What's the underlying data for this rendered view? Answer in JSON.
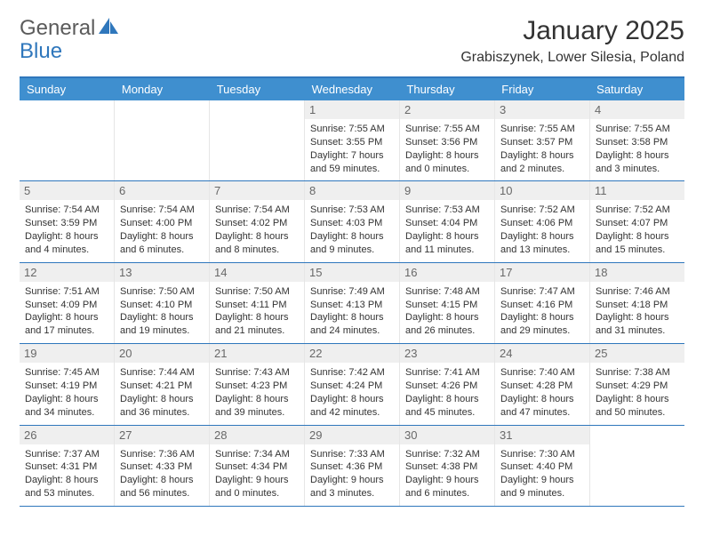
{
  "logo": {
    "word1": "General",
    "word2": "Blue"
  },
  "title": "January 2025",
  "location": "Grabiszynek, Lower Silesia, Poland",
  "colors": {
    "header_bar": "#3f8fcf",
    "border": "#2f77bc",
    "daynum_bg": "#efefef",
    "daynum_fg": "#686868",
    "text": "#333333"
  },
  "weekdays": [
    "Sunday",
    "Monday",
    "Tuesday",
    "Wednesday",
    "Thursday",
    "Friday",
    "Saturday"
  ],
  "weeks": [
    [
      {
        "n": "",
        "sr": "",
        "ss": "",
        "dl": ""
      },
      {
        "n": "",
        "sr": "",
        "ss": "",
        "dl": ""
      },
      {
        "n": "",
        "sr": "",
        "ss": "",
        "dl": ""
      },
      {
        "n": "1",
        "sr": "Sunrise: 7:55 AM",
        "ss": "Sunset: 3:55 PM",
        "dl": "Daylight: 7 hours and 59 minutes."
      },
      {
        "n": "2",
        "sr": "Sunrise: 7:55 AM",
        "ss": "Sunset: 3:56 PM",
        "dl": "Daylight: 8 hours and 0 minutes."
      },
      {
        "n": "3",
        "sr": "Sunrise: 7:55 AM",
        "ss": "Sunset: 3:57 PM",
        "dl": "Daylight: 8 hours and 2 minutes."
      },
      {
        "n": "4",
        "sr": "Sunrise: 7:55 AM",
        "ss": "Sunset: 3:58 PM",
        "dl": "Daylight: 8 hours and 3 minutes."
      }
    ],
    [
      {
        "n": "5",
        "sr": "Sunrise: 7:54 AM",
        "ss": "Sunset: 3:59 PM",
        "dl": "Daylight: 8 hours and 4 minutes."
      },
      {
        "n": "6",
        "sr": "Sunrise: 7:54 AM",
        "ss": "Sunset: 4:00 PM",
        "dl": "Daylight: 8 hours and 6 minutes."
      },
      {
        "n": "7",
        "sr": "Sunrise: 7:54 AM",
        "ss": "Sunset: 4:02 PM",
        "dl": "Daylight: 8 hours and 8 minutes."
      },
      {
        "n": "8",
        "sr": "Sunrise: 7:53 AM",
        "ss": "Sunset: 4:03 PM",
        "dl": "Daylight: 8 hours and 9 minutes."
      },
      {
        "n": "9",
        "sr": "Sunrise: 7:53 AM",
        "ss": "Sunset: 4:04 PM",
        "dl": "Daylight: 8 hours and 11 minutes."
      },
      {
        "n": "10",
        "sr": "Sunrise: 7:52 AM",
        "ss": "Sunset: 4:06 PM",
        "dl": "Daylight: 8 hours and 13 minutes."
      },
      {
        "n": "11",
        "sr": "Sunrise: 7:52 AM",
        "ss": "Sunset: 4:07 PM",
        "dl": "Daylight: 8 hours and 15 minutes."
      }
    ],
    [
      {
        "n": "12",
        "sr": "Sunrise: 7:51 AM",
        "ss": "Sunset: 4:09 PM",
        "dl": "Daylight: 8 hours and 17 minutes."
      },
      {
        "n": "13",
        "sr": "Sunrise: 7:50 AM",
        "ss": "Sunset: 4:10 PM",
        "dl": "Daylight: 8 hours and 19 minutes."
      },
      {
        "n": "14",
        "sr": "Sunrise: 7:50 AM",
        "ss": "Sunset: 4:11 PM",
        "dl": "Daylight: 8 hours and 21 minutes."
      },
      {
        "n": "15",
        "sr": "Sunrise: 7:49 AM",
        "ss": "Sunset: 4:13 PM",
        "dl": "Daylight: 8 hours and 24 minutes."
      },
      {
        "n": "16",
        "sr": "Sunrise: 7:48 AM",
        "ss": "Sunset: 4:15 PM",
        "dl": "Daylight: 8 hours and 26 minutes."
      },
      {
        "n": "17",
        "sr": "Sunrise: 7:47 AM",
        "ss": "Sunset: 4:16 PM",
        "dl": "Daylight: 8 hours and 29 minutes."
      },
      {
        "n": "18",
        "sr": "Sunrise: 7:46 AM",
        "ss": "Sunset: 4:18 PM",
        "dl": "Daylight: 8 hours and 31 minutes."
      }
    ],
    [
      {
        "n": "19",
        "sr": "Sunrise: 7:45 AM",
        "ss": "Sunset: 4:19 PM",
        "dl": "Daylight: 8 hours and 34 minutes."
      },
      {
        "n": "20",
        "sr": "Sunrise: 7:44 AM",
        "ss": "Sunset: 4:21 PM",
        "dl": "Daylight: 8 hours and 36 minutes."
      },
      {
        "n": "21",
        "sr": "Sunrise: 7:43 AM",
        "ss": "Sunset: 4:23 PM",
        "dl": "Daylight: 8 hours and 39 minutes."
      },
      {
        "n": "22",
        "sr": "Sunrise: 7:42 AM",
        "ss": "Sunset: 4:24 PM",
        "dl": "Daylight: 8 hours and 42 minutes."
      },
      {
        "n": "23",
        "sr": "Sunrise: 7:41 AM",
        "ss": "Sunset: 4:26 PM",
        "dl": "Daylight: 8 hours and 45 minutes."
      },
      {
        "n": "24",
        "sr": "Sunrise: 7:40 AM",
        "ss": "Sunset: 4:28 PM",
        "dl": "Daylight: 8 hours and 47 minutes."
      },
      {
        "n": "25",
        "sr": "Sunrise: 7:38 AM",
        "ss": "Sunset: 4:29 PM",
        "dl": "Daylight: 8 hours and 50 minutes."
      }
    ],
    [
      {
        "n": "26",
        "sr": "Sunrise: 7:37 AM",
        "ss": "Sunset: 4:31 PM",
        "dl": "Daylight: 8 hours and 53 minutes."
      },
      {
        "n": "27",
        "sr": "Sunrise: 7:36 AM",
        "ss": "Sunset: 4:33 PM",
        "dl": "Daylight: 8 hours and 56 minutes."
      },
      {
        "n": "28",
        "sr": "Sunrise: 7:34 AM",
        "ss": "Sunset: 4:34 PM",
        "dl": "Daylight: 9 hours and 0 minutes."
      },
      {
        "n": "29",
        "sr": "Sunrise: 7:33 AM",
        "ss": "Sunset: 4:36 PM",
        "dl": "Daylight: 9 hours and 3 minutes."
      },
      {
        "n": "30",
        "sr": "Sunrise: 7:32 AM",
        "ss": "Sunset: 4:38 PM",
        "dl": "Daylight: 9 hours and 6 minutes."
      },
      {
        "n": "31",
        "sr": "Sunrise: 7:30 AM",
        "ss": "Sunset: 4:40 PM",
        "dl": "Daylight: 9 hours and 9 minutes."
      },
      {
        "n": "",
        "sr": "",
        "ss": "",
        "dl": ""
      }
    ]
  ]
}
